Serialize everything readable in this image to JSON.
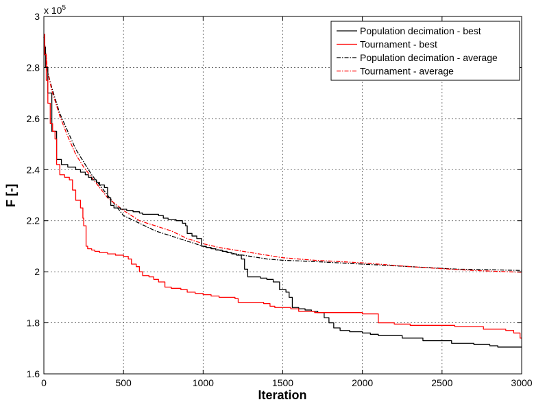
{
  "chart_data": {
    "type": "line",
    "xlabel": "Iteration",
    "ylabel": "F [-]",
    "exponent_label": "x 10",
    "exponent_power": "5",
    "xlim": [
      0,
      3000
    ],
    "ylim": [
      1.6,
      3.0
    ],
    "y_scale_factor": 100000,
    "x_ticks": [
      "0",
      "500",
      "1000",
      "1500",
      "2000",
      "2500",
      "3000"
    ],
    "y_ticks": [
      "1.6",
      "1.8",
      "2",
      "2.2",
      "2.4",
      "2.6",
      "2.8",
      "3"
    ],
    "grid": true,
    "legend_position": "top-right",
    "series": [
      {
        "name": "Population decimation - best",
        "color": "#000000",
        "style": "solid",
        "step": true,
        "points": [
          [
            0,
            2.88
          ],
          [
            10,
            2.8
          ],
          [
            25,
            2.7
          ],
          [
            50,
            2.55
          ],
          [
            80,
            2.44
          ],
          [
            110,
            2.42
          ],
          [
            150,
            2.41
          ],
          [
            200,
            2.4
          ],
          [
            230,
            2.39
          ],
          [
            260,
            2.38
          ],
          [
            280,
            2.37
          ],
          [
            300,
            2.36
          ],
          [
            330,
            2.35
          ],
          [
            350,
            2.34
          ],
          [
            380,
            2.33
          ],
          [
            400,
            2.29
          ],
          [
            420,
            2.26
          ],
          [
            440,
            2.25
          ],
          [
            480,
            2.245
          ],
          [
            520,
            2.24
          ],
          [
            560,
            2.235
          ],
          [
            600,
            2.23
          ],
          [
            620,
            2.225
          ],
          [
            700,
            2.225
          ],
          [
            720,
            2.22
          ],
          [
            750,
            2.21
          ],
          [
            780,
            2.205
          ],
          [
            830,
            2.2
          ],
          [
            870,
            2.19
          ],
          [
            890,
            2.18
          ],
          [
            900,
            2.15
          ],
          [
            930,
            2.14
          ],
          [
            960,
            2.13
          ],
          [
            990,
            2.1
          ],
          [
            1020,
            2.095
          ],
          [
            1050,
            2.09
          ],
          [
            1080,
            2.085
          ],
          [
            1120,
            2.08
          ],
          [
            1150,
            2.075
          ],
          [
            1180,
            2.07
          ],
          [
            1210,
            2.065
          ],
          [
            1240,
            2.05
          ],
          [
            1260,
            2.01
          ],
          [
            1280,
            1.98
          ],
          [
            1320,
            1.98
          ],
          [
            1360,
            1.975
          ],
          [
            1400,
            1.97
          ],
          [
            1440,
            1.96
          ],
          [
            1480,
            1.93
          ],
          [
            1520,
            1.92
          ],
          [
            1540,
            1.9
          ],
          [
            1560,
            1.86
          ],
          [
            1600,
            1.855
          ],
          [
            1640,
            1.85
          ],
          [
            1680,
            1.845
          ],
          [
            1720,
            1.84
          ],
          [
            1760,
            1.82
          ],
          [
            1790,
            1.8
          ],
          [
            1820,
            1.78
          ],
          [
            1860,
            1.77
          ],
          [
            1920,
            1.765
          ],
          [
            2000,
            1.76
          ],
          [
            2050,
            1.755
          ],
          [
            2100,
            1.75
          ],
          [
            2200,
            1.75
          ],
          [
            2250,
            1.74
          ],
          [
            2300,
            1.74
          ],
          [
            2380,
            1.73
          ],
          [
            2500,
            1.73
          ],
          [
            2560,
            1.72
          ],
          [
            2700,
            1.715
          ],
          [
            2800,
            1.71
          ],
          [
            2850,
            1.705
          ],
          [
            3000,
            1.705
          ]
        ]
      },
      {
        "name": "Tournament - best",
        "color": "#ff0000",
        "style": "solid",
        "step": true,
        "points": [
          [
            0,
            2.93
          ],
          [
            5,
            2.85
          ],
          [
            15,
            2.75
          ],
          [
            25,
            2.66
          ],
          [
            40,
            2.58
          ],
          [
            55,
            2.55
          ],
          [
            70,
            2.52
          ],
          [
            80,
            2.42
          ],
          [
            100,
            2.38
          ],
          [
            130,
            2.37
          ],
          [
            160,
            2.36
          ],
          [
            180,
            2.32
          ],
          [
            200,
            2.28
          ],
          [
            230,
            2.25
          ],
          [
            245,
            2.21
          ],
          [
            250,
            2.18
          ],
          [
            265,
            2.1
          ],
          [
            275,
            2.09
          ],
          [
            300,
            2.085
          ],
          [
            320,
            2.08
          ],
          [
            350,
            2.075
          ],
          [
            400,
            2.07
          ],
          [
            450,
            2.065
          ],
          [
            500,
            2.06
          ],
          [
            530,
            2.05
          ],
          [
            550,
            2.03
          ],
          [
            580,
            2.02
          ],
          [
            600,
            2.0
          ],
          [
            620,
            1.985
          ],
          [
            660,
            1.98
          ],
          [
            690,
            1.97
          ],
          [
            720,
            1.96
          ],
          [
            760,
            1.94
          ],
          [
            800,
            1.935
          ],
          [
            860,
            1.93
          ],
          [
            900,
            1.92
          ],
          [
            950,
            1.915
          ],
          [
            1000,
            1.91
          ],
          [
            1050,
            1.905
          ],
          [
            1100,
            1.9
          ],
          [
            1200,
            1.895
          ],
          [
            1220,
            1.88
          ],
          [
            1300,
            1.88
          ],
          [
            1380,
            1.875
          ],
          [
            1420,
            1.865
          ],
          [
            1450,
            1.86
          ],
          [
            1550,
            1.855
          ],
          [
            1600,
            1.845
          ],
          [
            1700,
            1.84
          ],
          [
            1800,
            1.84
          ],
          [
            1900,
            1.84
          ],
          [
            2000,
            1.835
          ],
          [
            2090,
            1.835
          ],
          [
            2100,
            1.8
          ],
          [
            2200,
            1.795
          ],
          [
            2300,
            1.79
          ],
          [
            2500,
            1.79
          ],
          [
            2580,
            1.785
          ],
          [
            2700,
            1.785
          ],
          [
            2760,
            1.775
          ],
          [
            2900,
            1.77
          ],
          [
            2950,
            1.76
          ],
          [
            2990,
            1.74
          ],
          [
            3000,
            1.74
          ]
        ]
      },
      {
        "name": "Population decimation - average",
        "color": "#000000",
        "style": "dashdot",
        "step": false,
        "points": [
          [
            0,
            2.92
          ],
          [
            25,
            2.78
          ],
          [
            50,
            2.72
          ],
          [
            100,
            2.62
          ],
          [
            150,
            2.55
          ],
          [
            200,
            2.48
          ],
          [
            250,
            2.43
          ],
          [
            300,
            2.38
          ],
          [
            400,
            2.3
          ],
          [
            500,
            2.22
          ],
          [
            600,
            2.19
          ],
          [
            700,
            2.16
          ],
          [
            800,
            2.14
          ],
          [
            900,
            2.12
          ],
          [
            1000,
            2.1
          ],
          [
            1100,
            2.085
          ],
          [
            1200,
            2.07
          ],
          [
            1300,
            2.06
          ],
          [
            1400,
            2.05
          ],
          [
            1500,
            2.045
          ],
          [
            1700,
            2.04
          ],
          [
            2000,
            2.03
          ],
          [
            2300,
            2.02
          ],
          [
            2600,
            2.01
          ],
          [
            2800,
            2.008
          ],
          [
            3000,
            2.005
          ]
        ]
      },
      {
        "name": "Tournament - average",
        "color": "#ff0000",
        "style": "dashdot",
        "step": false,
        "points": [
          [
            0,
            2.92
          ],
          [
            25,
            2.78
          ],
          [
            50,
            2.71
          ],
          [
            100,
            2.61
          ],
          [
            150,
            2.53
          ],
          [
            200,
            2.46
          ],
          [
            250,
            2.41
          ],
          [
            300,
            2.37
          ],
          [
            400,
            2.29
          ],
          [
            500,
            2.24
          ],
          [
            600,
            2.2
          ],
          [
            700,
            2.18
          ],
          [
            800,
            2.16
          ],
          [
            900,
            2.13
          ],
          [
            1000,
            2.11
          ],
          [
            1100,
            2.095
          ],
          [
            1200,
            2.085
          ],
          [
            1300,
            2.075
          ],
          [
            1400,
            2.065
          ],
          [
            1500,
            2.055
          ],
          [
            1700,
            2.045
          ],
          [
            2000,
            2.035
          ],
          [
            2300,
            2.02
          ],
          [
            2500,
            2.012
          ],
          [
            2700,
            2.005
          ],
          [
            3000,
            1.998
          ]
        ]
      }
    ]
  }
}
